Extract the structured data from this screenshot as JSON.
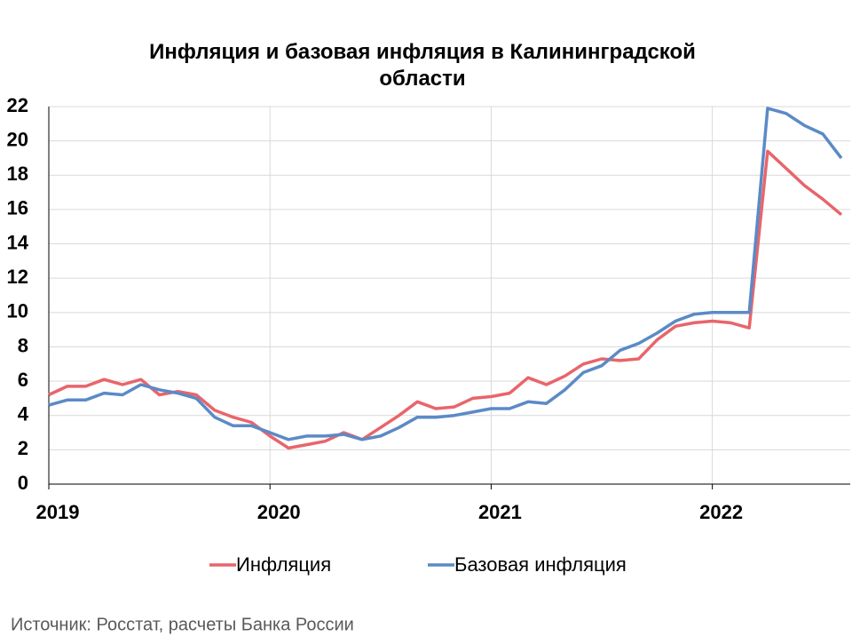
{
  "chart_data": {
    "type": "line",
    "title": "Инфляция и базовая инфляция в Калининградской области",
    "categories": [
      "2019",
      null,
      null,
      null,
      null,
      null,
      null,
      null,
      null,
      null,
      null,
      null,
      "2020",
      null,
      null,
      null,
      null,
      null,
      null,
      null,
      null,
      null,
      null,
      null,
      "2021",
      null,
      null,
      null,
      null,
      null,
      null,
      null,
      null,
      null,
      null,
      null,
      "2022",
      null,
      null,
      null,
      null,
      null,
      null,
      null
    ],
    "series": [
      {
        "name": "Инфляция",
        "color": "#e8656b",
        "values": [
          5.2,
          5.7,
          5.7,
          6.1,
          5.8,
          6.1,
          5.2,
          5.4,
          5.2,
          4.3,
          3.9,
          3.6,
          2.8,
          2.1,
          2.3,
          2.5,
          3.0,
          2.6,
          3.3,
          4.0,
          4.8,
          4.4,
          4.5,
          5.0,
          5.1,
          5.3,
          6.2,
          5.8,
          6.3,
          7.0,
          7.3,
          7.2,
          7.3,
          8.4,
          9.2,
          9.4,
          9.5,
          9.4,
          9.1,
          19.4,
          18.4,
          17.4,
          16.6,
          15.7
        ]
      },
      {
        "name": "Базовая инфляция",
        "color": "#5b8ac6",
        "values": [
          4.6,
          4.9,
          4.9,
          5.3,
          5.2,
          5.8,
          5.5,
          5.3,
          5.0,
          3.9,
          3.4,
          3.4,
          3.0,
          2.6,
          2.8,
          2.8,
          2.9,
          2.6,
          2.8,
          3.3,
          3.9,
          3.9,
          4.0,
          4.2,
          4.4,
          4.4,
          4.8,
          4.7,
          5.5,
          6.5,
          6.9,
          7.8,
          8.2,
          8.8,
          9.5,
          9.9,
          10.0,
          10.0,
          10.0,
          21.9,
          21.6,
          20.9,
          20.4,
          19.0
        ]
      }
    ],
    "ylim": [
      0,
      22
    ],
    "yticks": [
      0,
      2,
      4,
      6,
      8,
      10,
      12,
      14,
      16,
      18,
      20,
      22
    ],
    "grid": true,
    "legend": "bottom",
    "source": "Источник: Росстат, расчеты Банка России"
  }
}
